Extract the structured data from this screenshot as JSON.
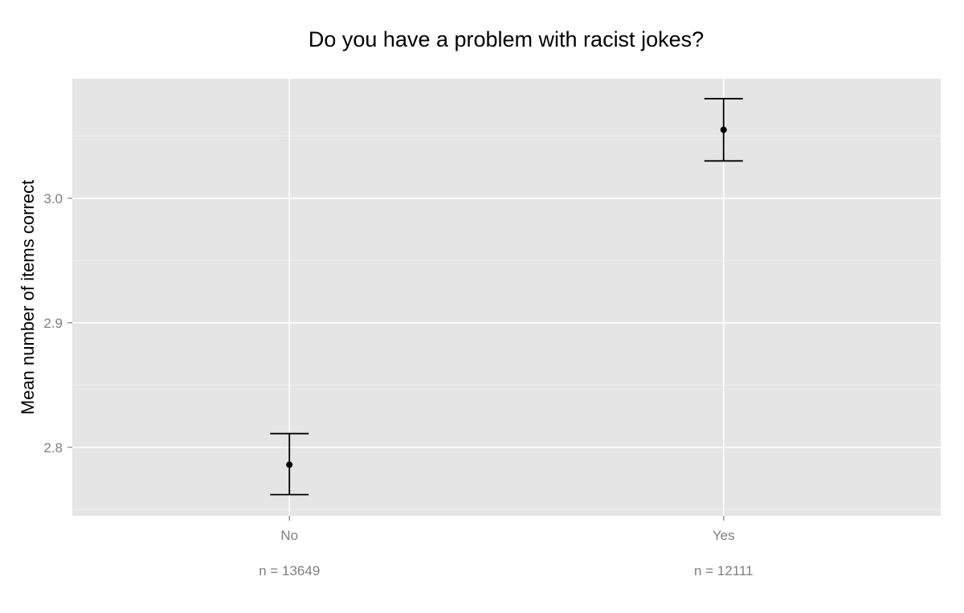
{
  "chart_data": {
    "type": "scatter",
    "title": "Do you have a problem with racist jokes?",
    "xlabel": "",
    "ylabel": "Mean number of items correct",
    "categories": [
      "No",
      "Yes"
    ],
    "category_notes": [
      "n = 13649",
      "n = 12111"
    ],
    "points": [
      {
        "category": "No",
        "mean": 2.786,
        "lower": 2.762,
        "upper": 2.811
      },
      {
        "category": "Yes",
        "mean": 3.055,
        "lower": 3.03,
        "upper": 3.08
      }
    ],
    "ylim": [
      2.745,
      3.096
    ],
    "yticks": [
      2.8,
      2.9,
      3.0
    ],
    "ytick_labels": [
      "2.8",
      "2.9",
      "3.0"
    ],
    "error_bars": true,
    "grid": true,
    "legend": "none",
    "colors": {
      "panel_background": "#e5e5e5",
      "grid_major": "#ffffff",
      "grid_minor": "#f2f2f2",
      "point": "#000000",
      "tick_text": "#7f7f7f"
    }
  }
}
